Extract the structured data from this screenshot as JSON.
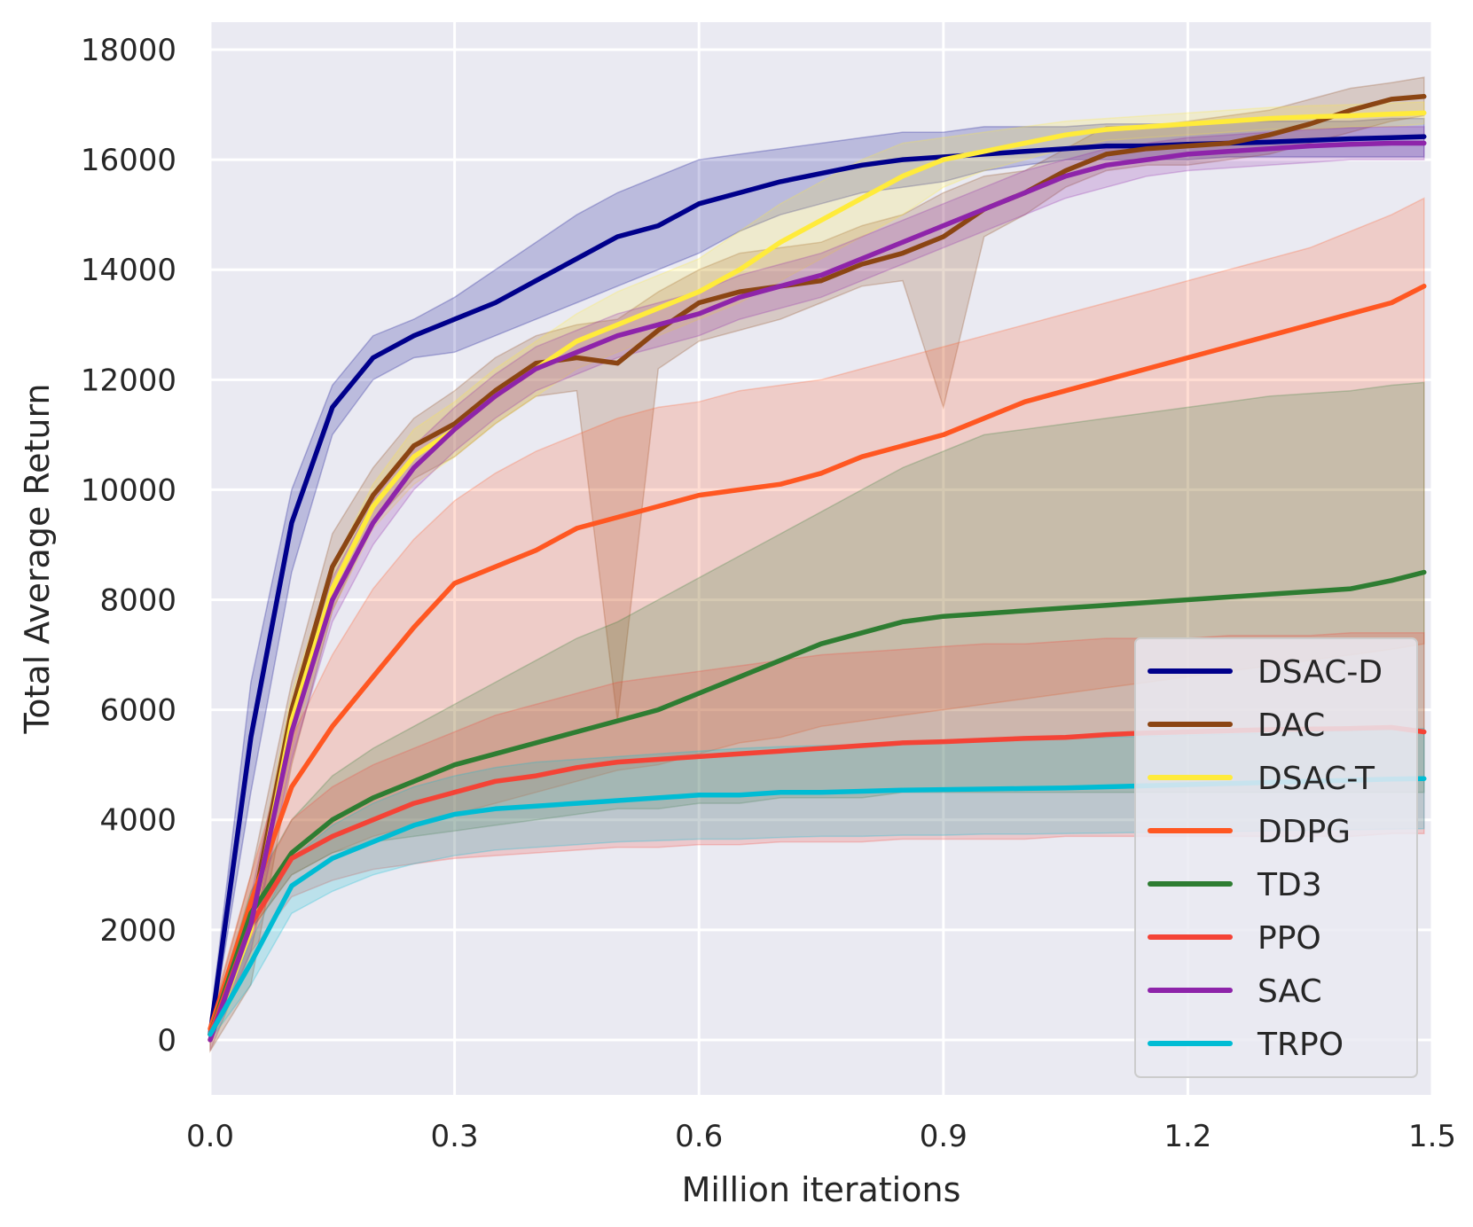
{
  "chart_data": {
    "type": "line",
    "title": "",
    "xlabel": "Million iterations",
    "ylabel": "Total Average Return",
    "xlim": [
      0,
      1.5
    ],
    "ylim": [
      -1000,
      18500
    ],
    "xticks": [
      0.0,
      0.3,
      0.6,
      0.9,
      1.2,
      1.5
    ],
    "xtick_labels": [
      "0.0",
      "0.3",
      "0.6",
      "0.9",
      "1.2",
      "1.5"
    ],
    "yticks": [
      0,
      2000,
      4000,
      6000,
      8000,
      10000,
      12000,
      14000,
      16000,
      18000
    ],
    "ytick_labels": [
      "0",
      "2000",
      "4000",
      "6000",
      "8000",
      "10000",
      "12000",
      "14000",
      "16000",
      "18000"
    ],
    "grid": true,
    "legend_position": "bottom-right",
    "shaded_band": "min-max range across runs",
    "x": [
      0.0,
      0.05,
      0.1,
      0.15,
      0.2,
      0.25,
      0.3,
      0.35,
      0.4,
      0.45,
      0.5,
      0.55,
      0.6,
      0.65,
      0.7,
      0.75,
      0.8,
      0.85,
      0.9,
      0.95,
      1.0,
      1.05,
      1.1,
      1.15,
      1.2,
      1.25,
      1.3,
      1.35,
      1.4,
      1.45,
      1.49
    ],
    "series": [
      {
        "name": "DSAC-D",
        "color": "#00008b",
        "values": [
          100,
          5500,
          9400,
          11500,
          12400,
          12800,
          13100,
          13400,
          13800,
          14200,
          14600,
          14800,
          15200,
          15400,
          15600,
          15750,
          15900,
          16000,
          16050,
          16100,
          16150,
          16200,
          16250,
          16250,
          16280,
          16300,
          16320,
          16350,
          16380,
          16400,
          16420
        ],
        "lower": [
          0,
          4500,
          8500,
          11000,
          12000,
          12400,
          12500,
          12800,
          13100,
          13400,
          13700,
          14000,
          14300,
          14700,
          15000,
          15200,
          15400,
          15500,
          15600,
          15800,
          15900,
          16000,
          16000,
          16000,
          16000,
          16050,
          16050,
          16050,
          16050,
          16050,
          16050
        ],
        "upper": [
          300,
          6500,
          10000,
          11900,
          12800,
          13100,
          13500,
          14000,
          14500,
          15000,
          15400,
          15700,
          16000,
          16100,
          16200,
          16300,
          16400,
          16500,
          16500,
          16600,
          16600,
          16600,
          16650,
          16650,
          16650,
          16700,
          16700,
          16700,
          16700,
          16750,
          16750
        ]
      },
      {
        "name": "DAC",
        "color": "#8b4513",
        "values": [
          100,
          2200,
          6000,
          8600,
          9900,
          10800,
          11200,
          11800,
          12300,
          12400,
          12300,
          12900,
          13400,
          13600,
          13700,
          13800,
          14100,
          14300,
          14600,
          15100,
          15400,
          15800,
          16100,
          16200,
          16250,
          16300,
          16450,
          16650,
          16900,
          17100,
          17150
        ],
        "lower": [
          -200,
          1000,
          5000,
          7800,
          9400,
          10200,
          10600,
          11200,
          11700,
          11800,
          5800,
          12200,
          12700,
          12900,
          13100,
          13400,
          13700,
          13800,
          11500,
          14600,
          15000,
          15500,
          15800,
          15900,
          15900,
          16000,
          16100,
          16300,
          16500,
          16700,
          16800
        ],
        "upper": [
          300,
          3000,
          6500,
          9200,
          10400,
          11300,
          11800,
          12400,
          12800,
          13000,
          13100,
          13600,
          14000,
          14300,
          14400,
          14500,
          14800,
          15000,
          15400,
          15700,
          15800,
          16200,
          16600,
          16600,
          16700,
          16800,
          16900,
          17100,
          17300,
          17400,
          17500
        ]
      },
      {
        "name": "DSAC-T",
        "color": "#ffeb3b",
        "values": [
          0,
          2000,
          5800,
          8200,
          9700,
          10600,
          11100,
          11700,
          12200,
          12700,
          13000,
          13300,
          13600,
          14000,
          14500,
          14900,
          15300,
          15700,
          16000,
          16150,
          16300,
          16450,
          16550,
          16600,
          16650,
          16700,
          16750,
          16780,
          16800,
          16830,
          16850
        ],
        "lower": [
          -200,
          1500,
          5300,
          7800,
          9300,
          10100,
          10600,
          11200,
          11700,
          12200,
          12500,
          12800,
          13100,
          13400,
          13800,
          14200,
          14600,
          15000,
          15500,
          15800,
          16000,
          16200,
          16350,
          16400,
          16450,
          16500,
          16550,
          16550,
          16600,
          16600,
          16650
        ],
        "upper": [
          200,
          2500,
          6300,
          8600,
          10100,
          11100,
          11600,
          12200,
          12700,
          13200,
          13600,
          13900,
          14200,
          14700,
          15200,
          15600,
          16000,
          16300,
          16400,
          16500,
          16600,
          16700,
          16750,
          16800,
          16850,
          16900,
          16950,
          16980,
          17000,
          17030,
          17050
        ]
      },
      {
        "name": "DDPG",
        "color": "#ff5722",
        "values": [
          200,
          2500,
          4600,
          5700,
          6600,
          7500,
          8300,
          8600,
          8900,
          9300,
          9500,
          9700,
          9900,
          10000,
          10100,
          10300,
          10600,
          10800,
          11000,
          11300,
          11600,
          11800,
          12000,
          12200,
          12400,
          12600,
          12800,
          13000,
          13200,
          13400,
          13700
        ],
        "lower": [
          0,
          2000,
          3000,
          3400,
          3700,
          3900,
          4100,
          4300,
          4500,
          4700,
          4900,
          5000,
          5200,
          5400,
          5500,
          5700,
          5800,
          5900,
          6000,
          6100,
          6200,
          6300,
          6400,
          6500,
          6600,
          6700,
          6800,
          6900,
          7000,
          7100,
          7200
        ],
        "upper": [
          400,
          3000,
          5500,
          7000,
          8200,
          9100,
          9800,
          10300,
          10700,
          11000,
          11300,
          11500,
          11600,
          11800,
          11900,
          12000,
          12200,
          12400,
          12600,
          12800,
          13000,
          13200,
          13400,
          13600,
          13800,
          14000,
          14200,
          14400,
          14700,
          15000,
          15300
        ]
      },
      {
        "name": "TD3",
        "color": "#2e7d32",
        "values": [
          100,
          2300,
          3400,
          4000,
          4400,
          4700,
          5000,
          5200,
          5400,
          5600,
          5800,
          6000,
          6300,
          6600,
          6900,
          7200,
          7400,
          7600,
          7700,
          7750,
          7800,
          7850,
          7900,
          7950,
          8000,
          8050,
          8100,
          8150,
          8200,
          8350,
          8500
        ],
        "lower": [
          0,
          2000,
          3000,
          3400,
          3600,
          3700,
          3800,
          3900,
          4000,
          4100,
          4200,
          4200,
          4300,
          4300,
          4400,
          4400,
          4400,
          4500,
          4500,
          4500,
          4500,
          4500,
          4500,
          4500,
          4500,
          4500,
          4500,
          4500,
          4500,
          4500,
          4500
        ],
        "upper": [
          200,
          2700,
          4000,
          4800,
          5300,
          5700,
          6100,
          6500,
          6900,
          7300,
          7600,
          8000,
          8400,
          8800,
          9200,
          9600,
          10000,
          10400,
          10700,
          11000,
          11100,
          11200,
          11300,
          11400,
          11500,
          11600,
          11700,
          11750,
          11800,
          11900,
          11950
        ]
      },
      {
        "name": "PPO",
        "color": "#f44336",
        "values": [
          100,
          2100,
          3300,
          3700,
          4000,
          4300,
          4500,
          4700,
          4800,
          4950,
          5050,
          5100,
          5150,
          5200,
          5250,
          5300,
          5350,
          5400,
          5420,
          5450,
          5480,
          5500,
          5550,
          5580,
          5600,
          5620,
          5640,
          5650,
          5660,
          5680,
          5600
        ],
        "lower": [
          0,
          1600,
          2600,
          2900,
          3100,
          3200,
          3300,
          3350,
          3400,
          3450,
          3500,
          3500,
          3550,
          3550,
          3600,
          3600,
          3600,
          3650,
          3650,
          3650,
          3650,
          3700,
          3700,
          3700,
          3700,
          3700,
          3700,
          3700,
          3700,
          3750,
          3750
        ],
        "upper": [
          200,
          2600,
          4000,
          4600,
          5000,
          5300,
          5600,
          5900,
          6100,
          6300,
          6500,
          6600,
          6700,
          6800,
          6900,
          7000,
          7050,
          7100,
          7150,
          7200,
          7200,
          7250,
          7300,
          7300,
          7300,
          7350,
          7350,
          7350,
          7400,
          7400,
          7400
        ]
      },
      {
        "name": "SAC",
        "color": "#8e24aa",
        "values": [
          0,
          2100,
          5600,
          8000,
          9400,
          10400,
          11100,
          11700,
          12200,
          12500,
          12800,
          13000,
          13200,
          13500,
          13700,
          13900,
          14200,
          14500,
          14800,
          15100,
          15400,
          15700,
          15900,
          16000,
          16100,
          16150,
          16200,
          16250,
          16280,
          16300,
          16300
        ],
        "lower": [
          -200,
          1600,
          5100,
          7600,
          9000,
          10000,
          10700,
          11300,
          11800,
          12100,
          12400,
          12600,
          12800,
          13100,
          13300,
          13500,
          13800,
          14100,
          14400,
          14700,
          15000,
          15300,
          15500,
          15700,
          15800,
          15850,
          15900,
          15950,
          16000,
          16000,
          16000
        ],
        "upper": [
          200,
          2600,
          6100,
          8400,
          9800,
          10800,
          11500,
          12100,
          12600,
          12900,
          13200,
          13400,
          13600,
          13900,
          14100,
          14300,
          14600,
          14900,
          15200,
          15500,
          15800,
          16000,
          16200,
          16300,
          16400,
          16450,
          16500,
          16550,
          16580,
          16600,
          16600
        ]
      },
      {
        "name": "TRPO",
        "color": "#00bcd4",
        "values": [
          100,
          1400,
          2800,
          3300,
          3600,
          3900,
          4100,
          4200,
          4250,
          4300,
          4350,
          4400,
          4450,
          4450,
          4500,
          4500,
          4520,
          4540,
          4550,
          4560,
          4570,
          4580,
          4600,
          4620,
          4640,
          4660,
          4680,
          4700,
          4720,
          4740,
          4750
        ],
        "lower": [
          0,
          1000,
          2300,
          2700,
          3000,
          3200,
          3350,
          3450,
          3500,
          3550,
          3600,
          3620,
          3650,
          3650,
          3680,
          3700,
          3700,
          3720,
          3720,
          3740,
          3740,
          3750,
          3760,
          3770,
          3780,
          3790,
          3800,
          3810,
          3820,
          3830,
          3840
        ],
        "upper": [
          200,
          1800,
          3300,
          3900,
          4300,
          4600,
          4800,
          4950,
          5050,
          5100,
          5150,
          5200,
          5250,
          5300,
          5330,
          5350,
          5370,
          5400,
          5420,
          5440,
          5460,
          5480,
          5500,
          5520,
          5540,
          5560,
          5580,
          5600,
          5620,
          5640,
          5660
        ]
      }
    ]
  }
}
